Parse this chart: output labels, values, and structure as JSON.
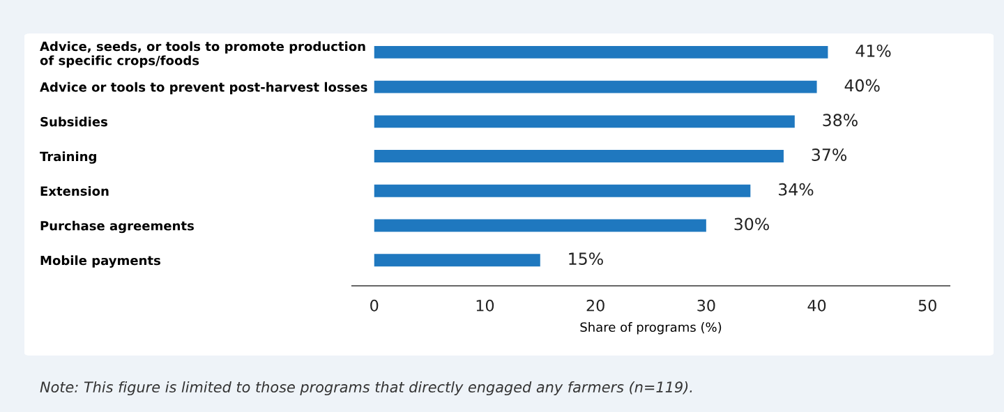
{
  "chart_data": {
    "type": "bar",
    "orientation": "horizontal",
    "categories": [
      "Advice, seeds, or tools to promote production\nof specific crops/foods",
      "Advice or tools to prevent post-harvest losses",
      "Subsidies",
      "Training",
      "Extension",
      "Purchase agreements",
      "Mobile payments"
    ],
    "values": [
      41,
      40,
      38,
      37,
      34,
      30,
      15
    ],
    "value_labels": [
      "41%",
      "40%",
      "38%",
      "37%",
      "34%",
      "30%",
      "15%"
    ],
    "color": "#1f78bf",
    "xlim": [
      -2,
      52
    ],
    "xticks": [
      0,
      10,
      20,
      30,
      40,
      50
    ],
    "xlabel": "Share of programs (%)",
    "grid": false,
    "legend": false,
    "annotations": [
      "Note: This figure is limited to those programs that directly engaged any farmers (n=119)."
    ]
  }
}
